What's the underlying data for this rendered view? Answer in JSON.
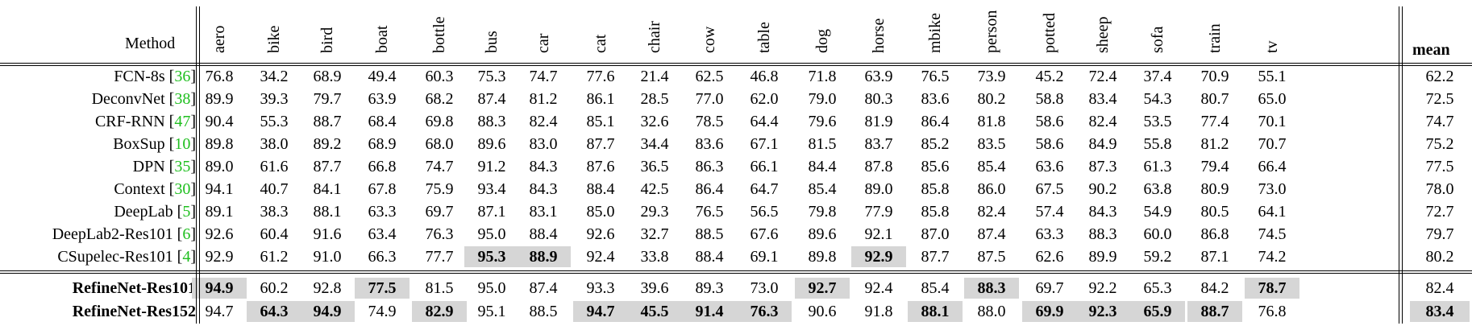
{
  "table": {
    "method_header": "Method",
    "mean_header": "mean",
    "columns": [
      "aero",
      "bike",
      "bird",
      "boat",
      "bottle",
      "bus",
      "car",
      "cat",
      "chair",
      "cow",
      "table",
      "dog",
      "horse",
      "mbike",
      "person",
      "potted",
      "sheep",
      "sofa",
      "train",
      "tv"
    ],
    "rows": [
      {
        "method": "FCN-8s",
        "ref": "36",
        "bold": false,
        "values": [
          "76.8",
          "34.2",
          "68.9",
          "49.4",
          "60.3",
          "75.3",
          "74.7",
          "77.6",
          "21.4",
          "62.5",
          "46.8",
          "71.8",
          "63.9",
          "76.5",
          "73.9",
          "45.2",
          "72.4",
          "37.4",
          "70.9",
          "55.1"
        ],
        "mean": "62.2",
        "shaded": [],
        "bolded": []
      },
      {
        "method": "DeconvNet",
        "ref": "38",
        "bold": false,
        "values": [
          "89.9",
          "39.3",
          "79.7",
          "63.9",
          "68.2",
          "87.4",
          "81.2",
          "86.1",
          "28.5",
          "77.0",
          "62.0",
          "79.0",
          "80.3",
          "83.6",
          "80.2",
          "58.8",
          "83.4",
          "54.3",
          "80.7",
          "65.0"
        ],
        "mean": "72.5",
        "shaded": [],
        "bolded": []
      },
      {
        "method": "CRF-RNN",
        "ref": "47",
        "bold": false,
        "values": [
          "90.4",
          "55.3",
          "88.7",
          "68.4",
          "69.8",
          "88.3",
          "82.4",
          "85.1",
          "32.6",
          "78.5",
          "64.4",
          "79.6",
          "81.9",
          "86.4",
          "81.8",
          "58.6",
          "82.4",
          "53.5",
          "77.4",
          "70.1"
        ],
        "mean": "74.7",
        "shaded": [],
        "bolded": []
      },
      {
        "method": "BoxSup",
        "ref": "10",
        "bold": false,
        "values": [
          "89.8",
          "38.0",
          "89.2",
          "68.9",
          "68.0",
          "89.6",
          "83.0",
          "87.7",
          "34.4",
          "83.6",
          "67.1",
          "81.5",
          "83.7",
          "85.2",
          "83.5",
          "58.6",
          "84.9",
          "55.8",
          "81.2",
          "70.7"
        ],
        "mean": "75.2",
        "shaded": [],
        "bolded": []
      },
      {
        "method": "DPN",
        "ref": "35",
        "bold": false,
        "values": [
          "89.0",
          "61.6",
          "87.7",
          "66.8",
          "74.7",
          "91.2",
          "84.3",
          "87.6",
          "36.5",
          "86.3",
          "66.1",
          "84.4",
          "87.8",
          "85.6",
          "85.4",
          "63.6",
          "87.3",
          "61.3",
          "79.4",
          "66.4"
        ],
        "mean": "77.5",
        "shaded": [],
        "bolded": []
      },
      {
        "method": "Context",
        "ref": "30",
        "bold": false,
        "values": [
          "94.1",
          "40.7",
          "84.1",
          "67.8",
          "75.9",
          "93.4",
          "84.3",
          "88.4",
          "42.5",
          "86.4",
          "64.7",
          "85.4",
          "89.0",
          "85.8",
          "86.0",
          "67.5",
          "90.2",
          "63.8",
          "80.9",
          "73.0"
        ],
        "mean": "78.0",
        "shaded": [],
        "bolded": []
      },
      {
        "method": "DeepLab",
        "ref": "5",
        "bold": false,
        "values": [
          "89.1",
          "38.3",
          "88.1",
          "63.3",
          "69.7",
          "87.1",
          "83.1",
          "85.0",
          "29.3",
          "76.5",
          "56.5",
          "79.8",
          "77.9",
          "85.8",
          "82.4",
          "57.4",
          "84.3",
          "54.9",
          "80.5",
          "64.1"
        ],
        "mean": "72.7",
        "shaded": [],
        "bolded": []
      },
      {
        "method": "DeepLab2-Res101",
        "ref": "6",
        "bold": false,
        "values": [
          "92.6",
          "60.4",
          "91.6",
          "63.4",
          "76.3",
          "95.0",
          "88.4",
          "92.6",
          "32.7",
          "88.5",
          "67.6",
          "89.6",
          "92.1",
          "87.0",
          "87.4",
          "63.3",
          "88.3",
          "60.0",
          "86.8",
          "74.5"
        ],
        "mean": "79.7",
        "shaded": [],
        "bolded": []
      },
      {
        "method": "CSupelec-Res101",
        "ref": "4",
        "bold": false,
        "values": [
          "92.9",
          "61.2",
          "91.0",
          "66.3",
          "77.7",
          "95.3",
          "88.9",
          "92.4",
          "33.8",
          "88.4",
          "69.1",
          "89.8",
          "92.9",
          "87.7",
          "87.5",
          "62.6",
          "89.9",
          "59.2",
          "87.1",
          "74.2"
        ],
        "mean": "80.2",
        "shaded": [
          5,
          6,
          12
        ],
        "bolded": [
          5,
          6,
          12
        ]
      },
      {
        "method": "RefineNet-Res101",
        "ref": "",
        "bold": true,
        "values": [
          "94.9",
          "60.2",
          "92.8",
          "77.5",
          "81.5",
          "95.0",
          "87.4",
          "93.3",
          "39.6",
          "89.3",
          "73.0",
          "92.7",
          "92.4",
          "85.4",
          "88.3",
          "69.7",
          "92.2",
          "65.3",
          "84.2",
          "78.7"
        ],
        "mean": "82.4",
        "shaded": [
          0,
          3,
          11,
          14,
          19
        ],
        "bolded": [
          0,
          3,
          11,
          14,
          19
        ]
      },
      {
        "method": "RefineNet-Res152",
        "ref": "",
        "bold": true,
        "values": [
          "94.7",
          "64.3",
          "94.9",
          "74.9",
          "82.9",
          "95.1",
          "88.5",
          "94.7",
          "45.5",
          "91.4",
          "76.3",
          "90.6",
          "91.8",
          "88.1",
          "88.0",
          "69.9",
          "92.3",
          "65.9",
          "88.7",
          "76.8"
        ],
        "mean": "83.4",
        "shaded": [
          1,
          2,
          4,
          7,
          8,
          9,
          10,
          13,
          15,
          16,
          17,
          18,
          20
        ],
        "bolded": [
          1,
          2,
          4,
          7,
          8,
          9,
          10,
          13,
          15,
          16,
          17,
          18,
          20
        ]
      }
    ]
  }
}
